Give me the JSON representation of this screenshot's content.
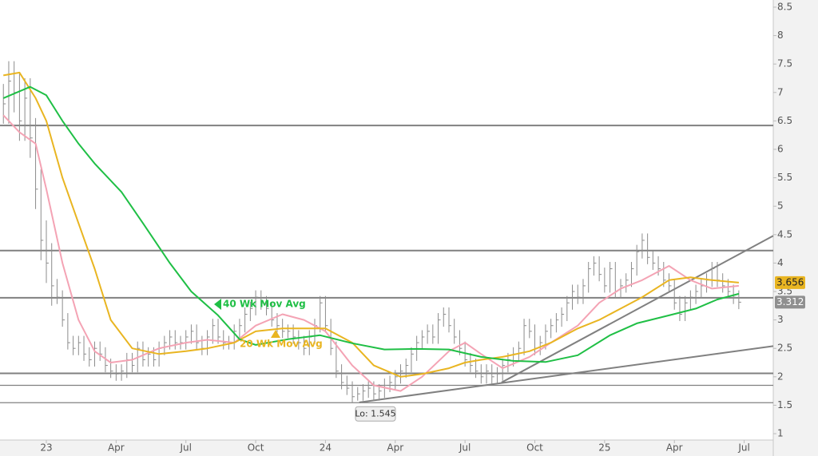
{
  "chart_data": {
    "type": "ohlc",
    "xlim": [
      -8.63,
      135.42
    ],
    "ylim": [
      0.888,
      8.626
    ],
    "xticks": [
      {
        "value": 0,
        "label": "23"
      },
      {
        "value": 13,
        "label": "Apr"
      },
      {
        "value": 26,
        "label": "Jul"
      },
      {
        "value": 39,
        "label": "Oct"
      },
      {
        "value": 52,
        "label": "24"
      },
      {
        "value": 65,
        "label": "Apr"
      },
      {
        "value": 78,
        "label": "Jul"
      },
      {
        "value": 91,
        "label": "Oct"
      },
      {
        "value": 104,
        "label": "25"
      },
      {
        "value": 117,
        "label": "Apr"
      },
      {
        "value": 130,
        "label": "Jul"
      }
    ],
    "yticks": [
      1,
      1.5,
      2,
      2.5,
      3,
      3.5,
      4,
      4.5,
      5,
      5.5,
      6,
      6.5,
      7,
      7.5,
      8,
      8.5
    ],
    "bar_color": "#8c8c8c",
    "x": [
      -8,
      -7,
      -6,
      -5,
      -4,
      -3,
      -2,
      -1,
      0,
      1,
      2,
      3,
      4,
      5,
      6,
      7,
      8,
      9,
      10,
      11,
      12,
      13,
      14,
      15,
      16,
      17,
      18,
      19,
      20,
      21,
      22,
      23,
      24,
      25,
      26,
      27,
      28,
      29,
      30,
      31,
      32,
      33,
      34,
      35,
      36,
      37,
      38,
      39,
      40,
      41,
      42,
      43,
      44,
      45,
      46,
      47,
      48,
      49,
      50,
      51,
      52,
      53,
      54,
      55,
      56,
      57,
      58,
      59,
      60,
      61,
      62,
      63,
      64,
      65,
      66,
      67,
      68,
      69,
      70,
      71,
      72,
      73,
      74,
      75,
      76,
      77,
      78,
      79,
      80,
      81,
      82,
      83,
      84,
      85,
      86,
      87,
      88,
      89,
      90,
      91,
      92,
      93,
      94,
      95,
      96,
      97,
      98,
      99,
      100,
      101,
      102,
      103,
      104,
      105,
      106,
      107,
      108,
      109,
      110,
      111,
      112,
      113,
      114,
      115,
      116,
      117,
      118,
      119,
      120,
      121,
      122,
      123,
      124,
      125,
      126,
      127,
      128,
      129
    ],
    "high": [
      7.15,
      7.55,
      7.55,
      7.35,
      7.25,
      7.25,
      6.55,
      5.65,
      4.75,
      4.35,
      3.72,
      3.52,
      3.12,
      2.72,
      2.72,
      2.72,
      2.52,
      2.62,
      2.62,
      2.52,
      2.32,
      2.22,
      2.22,
      2.42,
      2.42,
      2.62,
      2.62,
      2.52,
      2.52,
      2.62,
      2.72,
      2.82,
      2.82,
      2.72,
      2.82,
      2.92,
      2.92,
      2.72,
      2.82,
      3.02,
      3.02,
      2.82,
      2.72,
      2.92,
      3.02,
      3.22,
      3.32,
      3.52,
      3.52,
      3.42,
      3.32,
      3.12,
      3.02,
      2.92,
      2.92,
      2.82,
      2.72,
      2.82,
      3.02,
      3.42,
      3.42,
      3.02,
      2.62,
      2.22,
      2.02,
      1.92,
      1.82,
      1.87,
      1.92,
      1.92,
      1.87,
      1.97,
      2.02,
      2.12,
      2.22,
      2.32,
      2.52,
      2.72,
      2.82,
      2.92,
      2.92,
      3.12,
      3.22,
      3.22,
      3.02,
      2.82,
      2.62,
      2.42,
      2.32,
      2.22,
      2.22,
      2.22,
      2.17,
      2.32,
      2.42,
      2.52,
      2.62,
      3.02,
      3.02,
      2.92,
      2.72,
      2.92,
      3.02,
      3.12,
      3.22,
      3.42,
      3.62,
      3.62,
      3.72,
      4.02,
      4.12,
      4.12,
      3.92,
      4.02,
      4.02,
      3.72,
      3.82,
      4.02,
      4.32,
      4.52,
      4.52,
      4.22,
      4.12,
      4.02,
      3.82,
      3.72,
      3.42,
      3.42,
      3.52,
      3.62,
      3.72,
      3.82,
      4.02,
      4.02,
      3.82,
      3.72,
      3.62,
      3.52
    ],
    "low": [
      6.45,
      6.45,
      6.65,
      6.15,
      6.15,
      5.85,
      4.95,
      4.05,
      3.65,
      3.25,
      3.28,
      2.88,
      2.48,
      2.38,
      2.38,
      2.28,
      2.18,
      2.18,
      2.28,
      2.08,
      1.98,
      1.93,
      1.93,
      1.98,
      2.08,
      2.08,
      2.18,
      2.18,
      2.18,
      2.18,
      2.38,
      2.48,
      2.48,
      2.48,
      2.48,
      2.58,
      2.48,
      2.38,
      2.38,
      2.58,
      2.58,
      2.48,
      2.48,
      2.48,
      2.68,
      2.78,
      2.98,
      3.08,
      3.18,
      3.08,
      2.88,
      2.78,
      2.68,
      2.68,
      2.58,
      2.48,
      2.38,
      2.38,
      2.58,
      2.78,
      2.78,
      2.38,
      1.98,
      1.78,
      1.68,
      1.545,
      1.58,
      1.58,
      1.63,
      1.58,
      1.58,
      1.63,
      1.73,
      1.78,
      1.88,
      1.98,
      2.08,
      2.28,
      2.48,
      2.58,
      2.58,
      2.58,
      2.88,
      2.78,
      2.58,
      2.38,
      2.18,
      2.08,
      1.98,
      1.88,
      1.88,
      1.88,
      1.88,
      1.93,
      2.08,
      2.18,
      2.28,
      2.38,
      2.68,
      2.38,
      2.38,
      2.48,
      2.68,
      2.78,
      2.88,
      2.98,
      3.18,
      3.28,
      3.28,
      3.48,
      3.78,
      3.68,
      3.48,
      3.48,
      3.38,
      3.38,
      3.48,
      3.58,
      3.78,
      4.08,
      3.98,
      3.88,
      3.78,
      3.58,
      3.48,
      3.18,
      2.98,
      2.98,
      3.18,
      3.28,
      3.38,
      3.48,
      3.58,
      3.58,
      3.48,
      3.38,
      3.28,
      3.19
    ],
    "close": [
      6.8,
      7.2,
      7.0,
      6.5,
      6.9,
      6.2,
      5.3,
      4.4,
      4.0,
      3.6,
      3.4,
      3.0,
      2.6,
      2.5,
      2.6,
      2.4,
      2.3,
      2.5,
      2.4,
      2.2,
      2.1,
      2.05,
      2.1,
      2.3,
      2.2,
      2.5,
      2.3,
      2.4,
      2.3,
      2.5,
      2.6,
      2.7,
      2.6,
      2.6,
      2.7,
      2.8,
      2.6,
      2.5,
      2.7,
      2.9,
      2.7,
      2.6,
      2.6,
      2.8,
      2.9,
      3.1,
      3.2,
      3.4,
      3.3,
      3.2,
      3.0,
      2.9,
      2.8,
      2.8,
      2.7,
      2.6,
      2.5,
      2.7,
      2.9,
      3.3,
      2.9,
      2.5,
      2.1,
      1.9,
      1.8,
      1.65,
      1.7,
      1.75,
      1.8,
      1.7,
      1.75,
      1.85,
      1.9,
      2.0,
      2.1,
      2.2,
      2.4,
      2.6,
      2.7,
      2.8,
      2.7,
      3.0,
      3.1,
      2.9,
      2.7,
      2.5,
      2.3,
      2.2,
      2.1,
      2.0,
      2.1,
      2.0,
      2.05,
      2.2,
      2.3,
      2.4,
      2.5,
      2.9,
      2.8,
      2.5,
      2.6,
      2.8,
      2.9,
      3.0,
      3.1,
      3.3,
      3.5,
      3.4,
      3.6,
      3.9,
      4.0,
      3.8,
      3.6,
      3.9,
      3.5,
      3.6,
      3.7,
      3.9,
      4.2,
      4.4,
      4.1,
      4.0,
      3.9,
      3.7,
      3.6,
      3.3,
      3.1,
      3.3,
      3.4,
      3.5,
      3.6,
      3.7,
      3.9,
      3.7,
      3.6,
      3.5,
      3.4,
      3.312
    ],
    "last_close_color": "#8f8f8f",
    "series": [
      {
        "color": "#f4a3b4",
        "x": [
          -8,
          -5,
          -2,
          0,
          3,
          6,
          9,
          12,
          16,
          21,
          26,
          30,
          35,
          39,
          44,
          48,
          52,
          57,
          61,
          66,
          70,
          75,
          78,
          81,
          85,
          90,
          94,
          99,
          103,
          107,
          111,
          116,
          120,
          124,
          129
        ],
        "values": [
          6.6,
          6.3,
          6.1,
          5.3,
          4.0,
          3.0,
          2.45,
          2.25,
          2.3,
          2.5,
          2.6,
          2.65,
          2.6,
          2.9,
          3.1,
          3.0,
          2.8,
          2.2,
          1.85,
          1.75,
          2.0,
          2.45,
          2.6,
          2.4,
          2.15,
          2.35,
          2.6,
          2.9,
          3.3,
          3.55,
          3.7,
          3.95,
          3.7,
          3.55,
          3.6
        ]
      },
      {
        "name": "20 Wk Mov Avg",
        "color": "#e9b521",
        "x": [
          -8,
          -5,
          -2,
          0,
          3,
          6,
          9,
          12,
          16,
          21,
          26,
          30,
          35,
          39,
          44,
          48,
          52,
          57,
          61,
          66,
          70,
          75,
          78,
          81,
          85,
          90,
          94,
          99,
          103,
          107,
          111,
          116,
          120,
          124,
          129
        ],
        "values": [
          7.3,
          7.35,
          6.9,
          6.5,
          5.5,
          4.7,
          3.9,
          3.0,
          2.5,
          2.4,
          2.45,
          2.5,
          2.6,
          2.8,
          2.85,
          2.85,
          2.85,
          2.6,
          2.2,
          2.0,
          2.05,
          2.15,
          2.25,
          2.3,
          2.35,
          2.45,
          2.6,
          2.85,
          3.0,
          3.2,
          3.4,
          3.7,
          3.75,
          3.7,
          3.656
        ]
      },
      {
        "name": "40 Wk Mov Avg",
        "color": "#1fbf45",
        "x": [
          -8,
          -3,
          0,
          3,
          6,
          9,
          14,
          18,
          23,
          27,
          32,
          36,
          39,
          45,
          51,
          57,
          63,
          69,
          75,
          81,
          87,
          93,
          99,
          105,
          110,
          116,
          121,
          125,
          129
        ],
        "values": [
          6.9,
          7.1,
          6.95,
          6.5,
          6.1,
          5.75,
          5.25,
          4.7,
          4.0,
          3.5,
          3.08,
          2.66,
          2.56,
          2.66,
          2.73,
          2.59,
          2.48,
          2.49,
          2.48,
          2.35,
          2.28,
          2.26,
          2.38,
          2.73,
          2.94,
          3.08,
          3.2,
          3.36,
          3.46
        ]
      }
    ],
    "hlines": [
      {
        "value": 6.42,
        "width": 2
      },
      {
        "value": 4.22,
        "width": 2
      },
      {
        "value": 3.39,
        "width": 2
      },
      {
        "value": 2.06,
        "width": 2
      },
      {
        "value": 1.85,
        "width": 1.3
      },
      {
        "value": 1.545,
        "width": 1.3
      }
    ],
    "trendlines": [
      {
        "x": [
          58.3,
          135.42
        ],
        "y": [
          1.55,
          2.54
        ]
      },
      {
        "x": [
          84.8,
          135.42
        ],
        "y": [
          1.9,
          4.48
        ]
      }
    ],
    "line_color": "#808080",
    "low_label": "Lo: 1.545"
  }
}
